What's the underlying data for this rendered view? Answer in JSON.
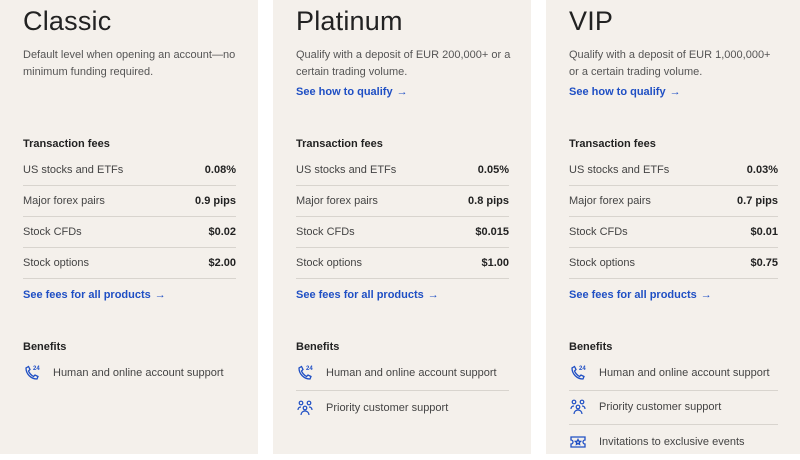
{
  "tiers": [
    {
      "name": "Classic",
      "description": "Default level when opening an account—no minimum funding required.",
      "qualify_link": null,
      "fees_heading": "Transaction fees",
      "fees": [
        {
          "label": "US stocks and ETFs",
          "value": "0.08%"
        },
        {
          "label": "Major forex pairs",
          "value": "0.9 pips"
        },
        {
          "label": "Stock CFDs",
          "value": "$0.02"
        },
        {
          "label": "Stock options",
          "value": "$2.00"
        }
      ],
      "fees_link": "See fees for all products",
      "benefits_heading": "Benefits",
      "benefits": [
        {
          "icon": "phone-24-icon",
          "label": "Human and online account support"
        }
      ]
    },
    {
      "name": "Platinum",
      "description": "Qualify with a deposit of EUR 200,000+ or a certain trading volume.",
      "qualify_link": "See how to qualify",
      "fees_heading": "Transaction fees",
      "fees": [
        {
          "label": "US stocks and ETFs",
          "value": "0.05%"
        },
        {
          "label": "Major forex pairs",
          "value": "0.8 pips"
        },
        {
          "label": "Stock CFDs",
          "value": "$0.015"
        },
        {
          "label": "Stock options",
          "value": "$1.00"
        }
      ],
      "fees_link": "See fees for all products",
      "benefits_heading": "Benefits",
      "benefits": [
        {
          "icon": "phone-24-icon",
          "label": "Human and online account support"
        },
        {
          "icon": "people-icon",
          "label": "Priority customer support"
        }
      ]
    },
    {
      "name": "VIP",
      "description": "Qualify with a deposit of EUR 1,000,000+ or a certain trading volume.",
      "qualify_link": "See how to qualify",
      "fees_heading": "Transaction fees",
      "fees": [
        {
          "label": "US stocks and ETFs",
          "value": "0.03%"
        },
        {
          "label": "Major forex pairs",
          "value": "0.7 pips"
        },
        {
          "label": "Stock CFDs",
          "value": "$0.01"
        },
        {
          "label": "Stock options",
          "value": "$0.75"
        }
      ],
      "fees_link": "See fees for all products",
      "benefits_heading": "Benefits",
      "benefits": [
        {
          "icon": "phone-24-icon",
          "label": "Human and online account support"
        },
        {
          "icon": "people-icon",
          "label": "Priority customer support"
        },
        {
          "icon": "ticket-icon",
          "label": "Invitations to exclusive events"
        }
      ]
    }
  ],
  "arrow": "→",
  "colors": {
    "card_bg": "#f4f0eb",
    "link": "#1f4fc4"
  }
}
